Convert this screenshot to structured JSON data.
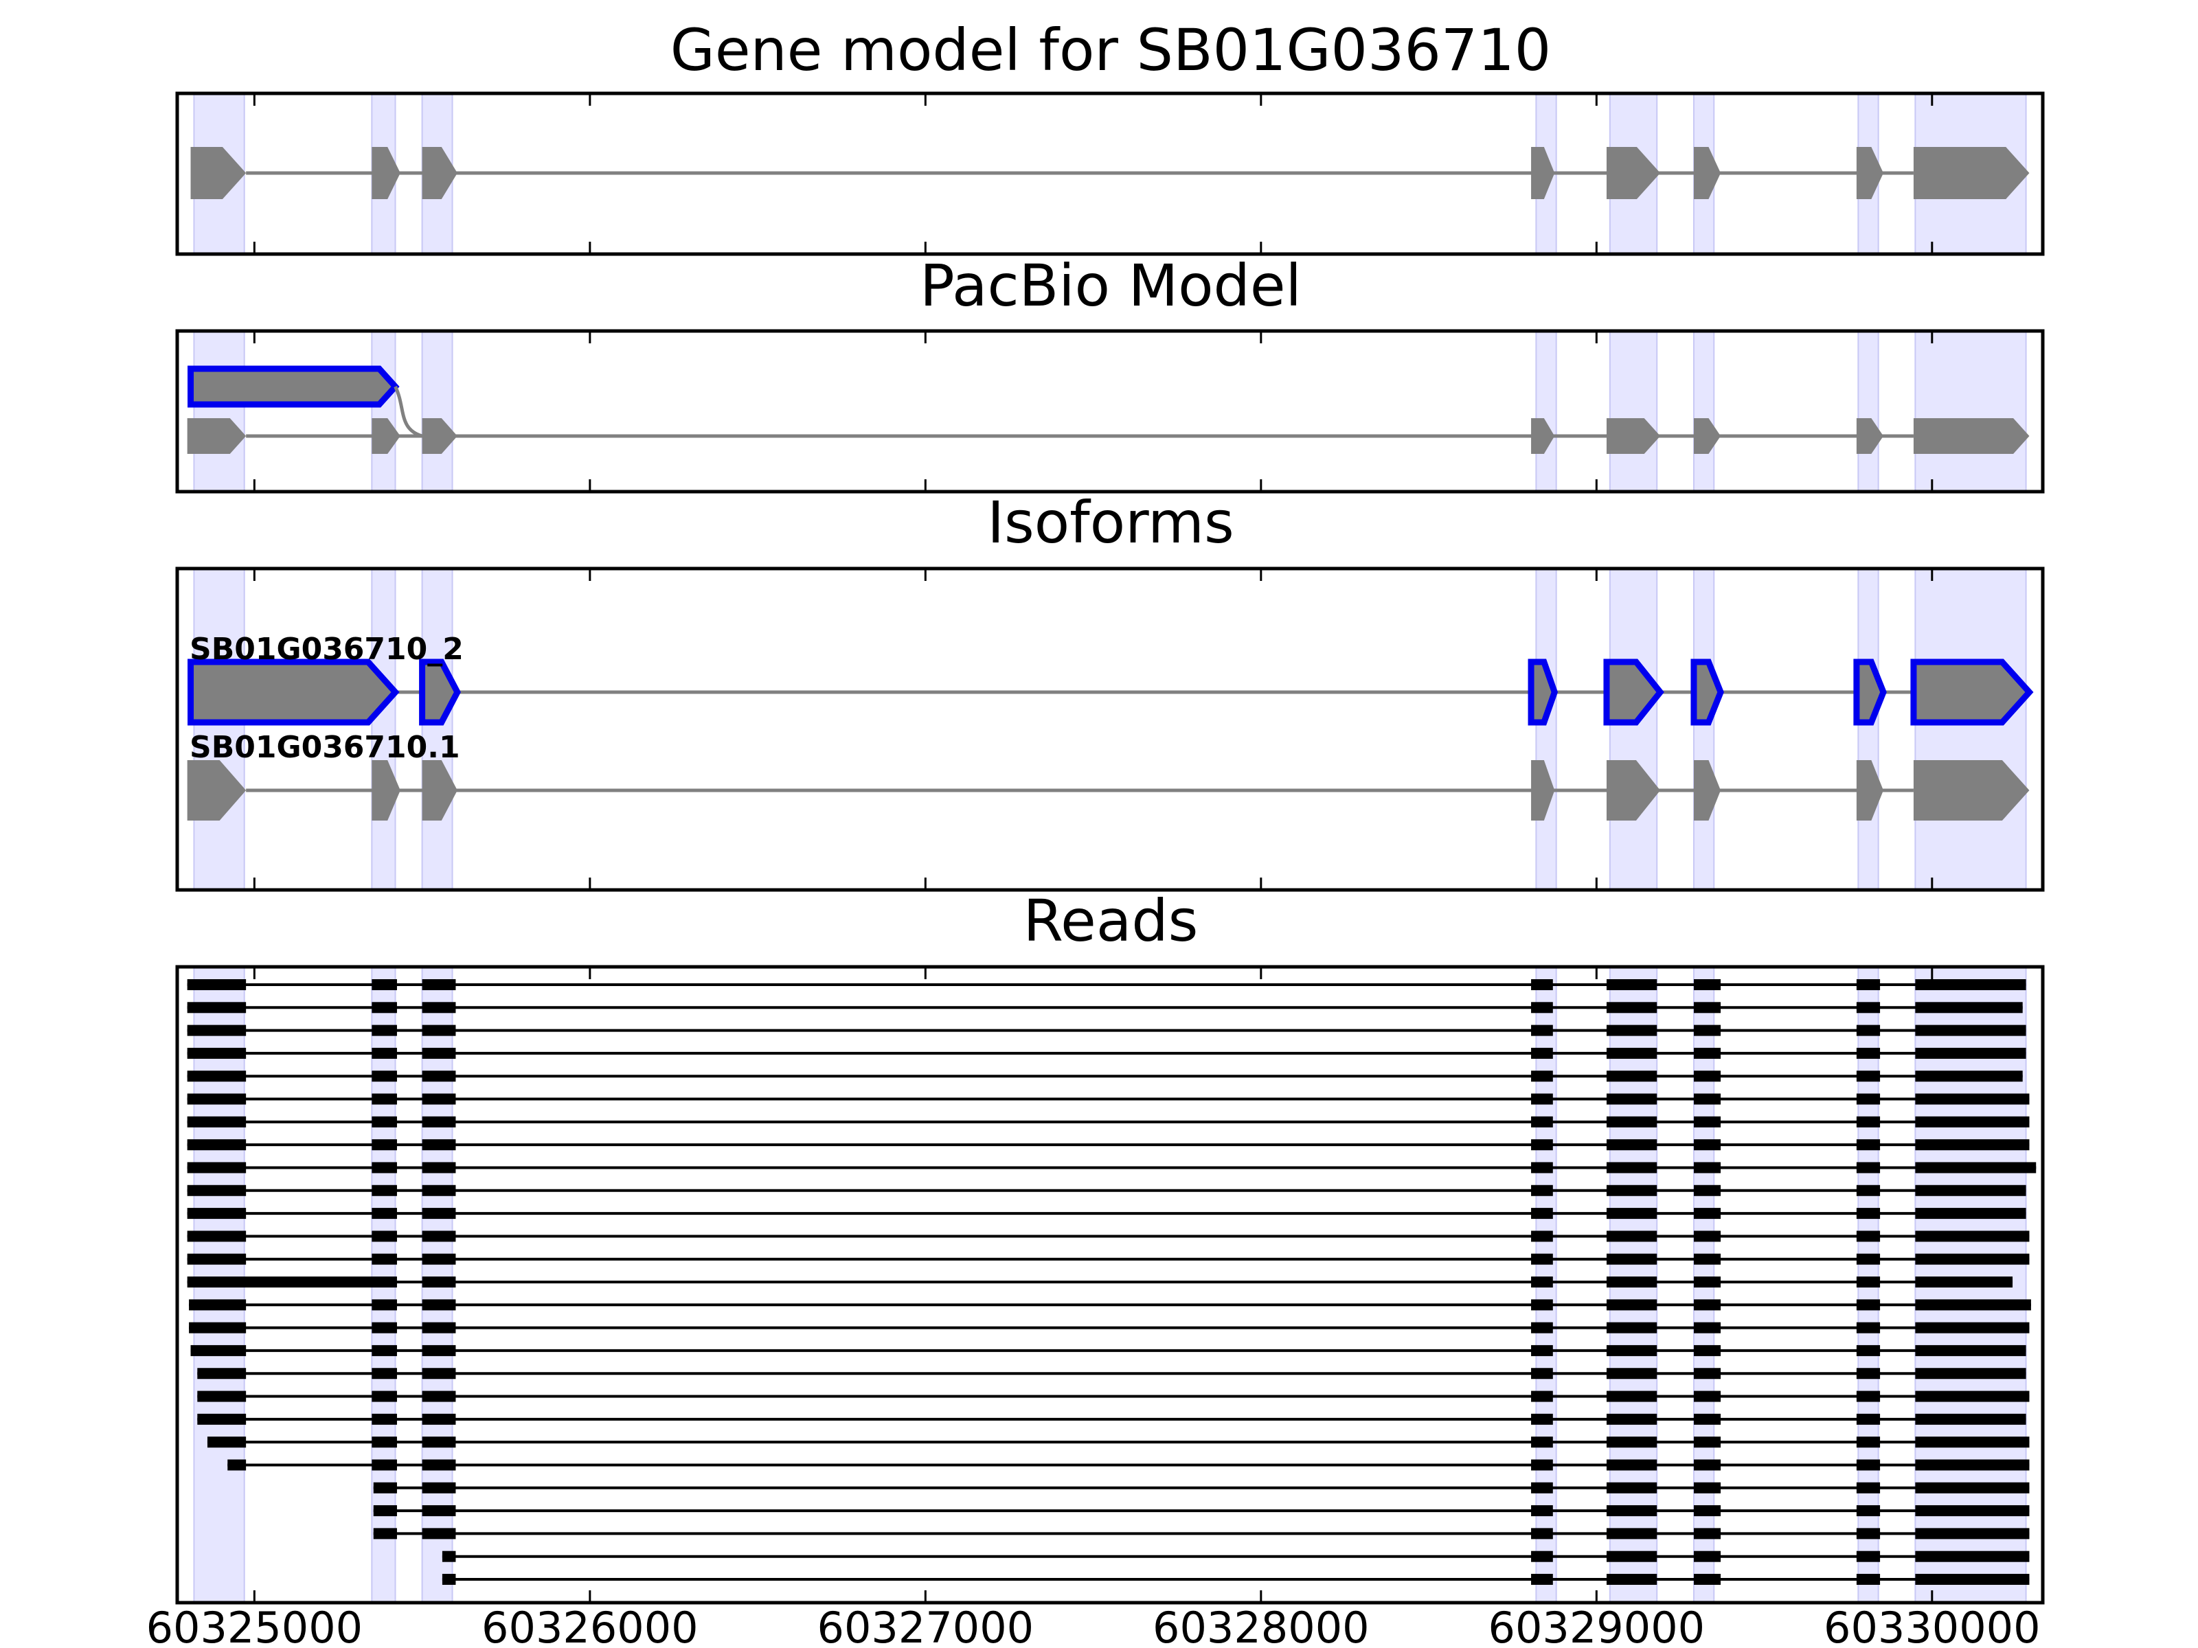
{
  "chart_data": {
    "type": "gene-track",
    "xlim": [
      60324770,
      60330330
    ],
    "x_tick_values": [
      60325000,
      60326000,
      60327000,
      60328000,
      60329000,
      60330000
    ],
    "x_tick_labels": [
      "60325000",
      "60326000",
      "60327000",
      "60328000",
      "60329000",
      "60330000"
    ],
    "exon_band_color": "#e6e6ff",
    "feature_color": "#808080",
    "highlight_color": "#0000ee",
    "read_color": "#000000",
    "shaded_exons": [
      [
        60324820,
        60324970
      ],
      [
        60325350,
        60325420
      ],
      [
        60325500,
        60325590
      ],
      [
        60328820,
        60328880
      ],
      [
        60329040,
        60329180
      ],
      [
        60329290,
        60329350
      ],
      [
        60329780,
        60329840
      ],
      [
        60329950,
        60330280
      ]
    ],
    "panels": [
      {
        "title": "Gene model for SB01G036710",
        "models": [
          {
            "label": "",
            "highlight": false,
            "exons": [
              [
                60324810,
                60324975
              ],
              [
                60325350,
                60325435
              ],
              [
                60325500,
                60325605
              ],
              [
                60328805,
                60328875
              ],
              [
                60329030,
                60329190
              ],
              [
                60329290,
                60329370
              ],
              [
                60329775,
                60329855
              ],
              [
                60329945,
                60330290
              ]
            ]
          }
        ]
      },
      {
        "title": "PacBio Model",
        "models": [
          {
            "label": "",
            "highlight": true,
            "exons": [
              [
                60324810,
                60325420
              ]
            ],
            "joins_next_exon_at": 60325500
          },
          {
            "label": "",
            "highlight": false,
            "exons": [
              [
                60324800,
                60324975
              ],
              [
                60325350,
                60325435
              ],
              [
                60325500,
                60325605
              ],
              [
                60328805,
                60328875
              ],
              [
                60329030,
                60329190
              ],
              [
                60329290,
                60329370
              ],
              [
                60329775,
                60329855
              ],
              [
                60329945,
                60330290
              ]
            ]
          }
        ]
      },
      {
        "title": "Isoforms",
        "models": [
          {
            "label": "SB01G036710_2",
            "highlight": true,
            "exons": [
              [
                60324810,
                60325420
              ],
              [
                60325500,
                60325605
              ],
              [
                60328805,
                60328875
              ],
              [
                60329030,
                60329190
              ],
              [
                60329290,
                60329370
              ],
              [
                60329775,
                60329855
              ],
              [
                60329945,
                60330290
              ]
            ]
          },
          {
            "label": "SB01G036710.1",
            "highlight": false,
            "exons": [
              [
                60324800,
                60324975
              ],
              [
                60325350,
                60325435
              ],
              [
                60325500,
                60325605
              ],
              [
                60328805,
                60328875
              ],
              [
                60329030,
                60329190
              ],
              [
                60329290,
                60329370
              ],
              [
                60329775,
                60329855
              ],
              [
                60329945,
                60330290
              ]
            ]
          }
        ]
      }
    ],
    "reads": {
      "title": "Reads",
      "middle_exons": [
        [
          60325350,
          60325425
        ],
        [
          60325500,
          60325600
        ],
        [
          60328805,
          60328870
        ],
        [
          60329030,
          60329180
        ],
        [
          60329290,
          60329370
        ],
        [
          60329775,
          60329845
        ]
      ],
      "rows": [
        {
          "first_end": 60324975,
          "start": 60324800,
          "end": 60330280
        },
        {
          "first_end": 60324975,
          "start": 60324800,
          "end": 60330270
        },
        {
          "first_end": 60324975,
          "start": 60324800,
          "end": 60330280
        },
        {
          "first_end": 60324975,
          "start": 60324800,
          "end": 60330280
        },
        {
          "first_end": 60324975,
          "start": 60324800,
          "end": 60330270
        },
        {
          "first_end": 60324975,
          "start": 60324800,
          "end": 60330290
        },
        {
          "first_end": 60324975,
          "start": 60324800,
          "end": 60330290
        },
        {
          "first_end": 60324975,
          "start": 60324800,
          "end": 60330290
        },
        {
          "first_end": 60324975,
          "start": 60324800,
          "end": 60330310
        },
        {
          "first_end": 60324975,
          "start": 60324800,
          "end": 60330280
        },
        {
          "first_end": 60324975,
          "start": 60324800,
          "end": 60330280
        },
        {
          "first_end": 60324975,
          "start": 60324800,
          "end": 60330290
        },
        {
          "first_end": 60324975,
          "start": 60324800,
          "end": 60330290
        },
        {
          "first_end": 60325425,
          "start": 60324800,
          "end": 60330240
        },
        {
          "first_end": 60324975,
          "start": 60324805,
          "end": 60330295
        },
        {
          "first_end": 60324975,
          "start": 60324805,
          "end": 60330290
        },
        {
          "first_end": 60324975,
          "start": 60324810,
          "end": 60330280
        },
        {
          "first_end": 60324975,
          "start": 60324830,
          "end": 60330280
        },
        {
          "first_end": 60324975,
          "start": 60324830,
          "end": 60330290
        },
        {
          "first_end": 60324975,
          "start": 60324830,
          "end": 60330280
        },
        {
          "first_end": 60324975,
          "start": 60324860,
          "end": 60330290
        },
        {
          "first_end": 60324975,
          "start": 60324920,
          "end": 60330290
        },
        {
          "first_end": null,
          "start": 60325355,
          "end": 60330290
        },
        {
          "first_end": null,
          "start": 60325355,
          "end": 60330290
        },
        {
          "first_end": null,
          "start": 60325355,
          "end": 60330290
        },
        {
          "first_end": null,
          "start": 60325560,
          "end": 60330290
        },
        {
          "first_end": null,
          "start": 60325560,
          "end": 60330290
        }
      ]
    }
  }
}
